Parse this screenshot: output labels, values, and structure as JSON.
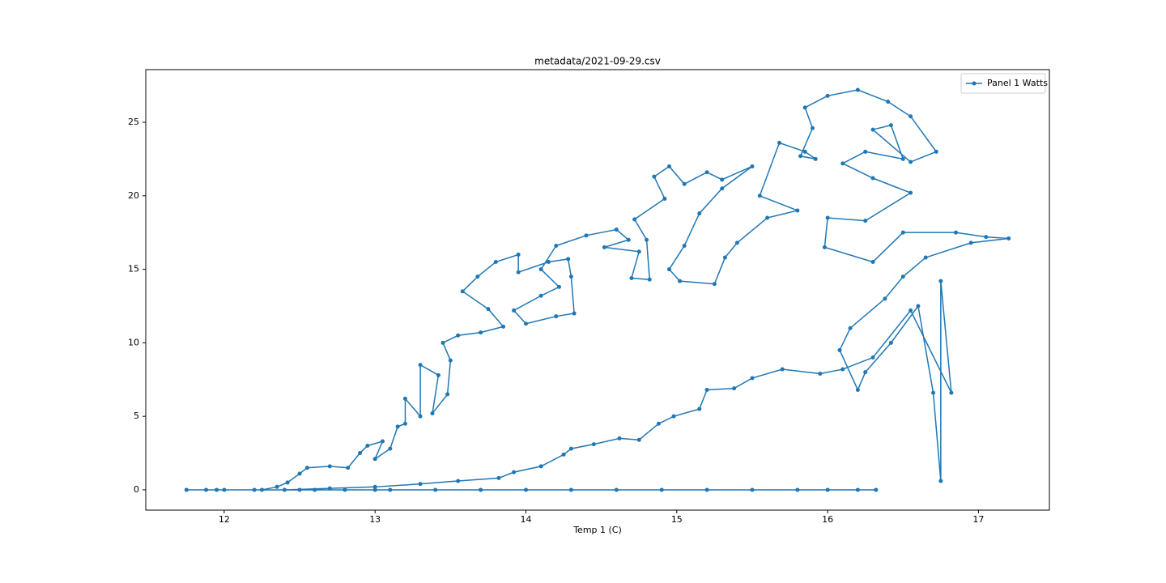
{
  "chart_data": {
    "type": "line",
    "title": "metadata/2021-09-29.csv",
    "xlabel": "Temp 1 (C)",
    "x": [
      16.32,
      16.2,
      16.0,
      15.8,
      15.5,
      15.2,
      14.9,
      14.6,
      14.3,
      14.0,
      13.7,
      13.4,
      13.1,
      12.8,
      12.5,
      12.2,
      12.0,
      11.88,
      11.75,
      11.95,
      12.25,
      12.35,
      12.42,
      12.5,
      12.55,
      12.7,
      12.82,
      12.9,
      12.95,
      13.05,
      13.0,
      13.1,
      13.15,
      13.2,
      13.2,
      13.3,
      13.3,
      13.42,
      13.38,
      13.48,
      13.5,
      13.45,
      13.55,
      13.7,
      13.85,
      13.75,
      13.58,
      13.68,
      13.8,
      13.95,
      13.95,
      14.15,
      14.28,
      14.3,
      14.32,
      14.2,
      14.0,
      13.92,
      14.1,
      14.22,
      14.1,
      14.2,
      14.4,
      14.6,
      14.68,
      14.52,
      14.75,
      14.7,
      14.82,
      14.8,
      14.72,
      14.92,
      14.85,
      14.95,
      15.05,
      15.2,
      15.3,
      15.5,
      15.3,
      15.15,
      15.05,
      14.95,
      15.02,
      15.25,
      15.32,
      15.4,
      15.6,
      15.8,
      15.55,
      15.68,
      15.85,
      15.92,
      15.82,
      15.9,
      15.85,
      16.0,
      16.2,
      16.4,
      16.55,
      16.72,
      16.55,
      16.3,
      16.42,
      16.5,
      16.25,
      16.1,
      16.3,
      16.55,
      16.25,
      16.0,
      15.98,
      16.3,
      16.5,
      16.85,
      17.05,
      17.2,
      16.95,
      16.65,
      16.5,
      16.38,
      16.15,
      16.08,
      16.2,
      16.25,
      16.42,
      16.6,
      16.7,
      16.75,
      16.75,
      16.82,
      16.55,
      16.3,
      16.1,
      15.95,
      15.7,
      15.5,
      15.38,
      15.2,
      15.15,
      14.98,
      14.88,
      14.75,
      14.62,
      14.45,
      14.3,
      14.25,
      14.1,
      13.92,
      13.82,
      13.55,
      13.3,
      13.0,
      12.7,
      12.4,
      12.6,
      13.0
    ],
    "series": [
      {
        "name": "Panel 1 Watts",
        "color": "#1f77b4",
        "values": [
          0,
          0,
          0,
          0,
          0,
          0,
          0,
          0,
          0,
          0,
          0,
          0,
          0,
          0,
          0,
          0,
          0,
          0,
          0,
          0,
          0,
          0.2,
          0.5,
          1.1,
          1.5,
          1.6,
          1.5,
          2.5,
          3,
          3.3,
          2.1,
          2.8,
          4.3,
          4.5,
          6.2,
          5,
          8.5,
          7.8,
          5.2,
          6.5,
          8.8,
          10,
          10.5,
          10.7,
          11.1,
          12.3,
          13.5,
          14.5,
          15.5,
          16,
          14.8,
          15.5,
          15.7,
          14.5,
          12,
          11.8,
          11.3,
          12.2,
          13.2,
          13.8,
          15,
          16.6,
          17.3,
          17.7,
          17,
          16.5,
          16.2,
          14.4,
          14.3,
          17,
          18.4,
          19.8,
          21.3,
          22,
          20.8,
          21.6,
          21.1,
          22,
          20.5,
          18.8,
          16.6,
          15,
          14.2,
          14,
          15.8,
          16.8,
          18.5,
          19,
          20,
          23.6,
          23,
          22.5,
          22.7,
          24.6,
          26,
          26.8,
          27.2,
          26.4,
          25.4,
          23,
          22.3,
          24.5,
          24.8,
          22.5,
          23,
          22.2,
          21.2,
          20.2,
          18.3,
          18.5,
          16.5,
          15.5,
          17.5,
          17.5,
          17.2,
          17.1,
          16.8,
          15.8,
          14.5,
          13,
          11,
          9.5,
          6.8,
          8,
          10,
          12.5,
          6.6,
          0.6,
          14.2,
          6.6,
          12.2,
          9,
          8.2,
          7.9,
          8.2,
          7.6,
          6.9,
          6.8,
          5.5,
          5,
          4.5,
          3.4,
          3.5,
          3.1,
          2.8,
          2.4,
          1.6,
          1.2,
          0.8,
          0.6,
          0.4,
          0.2,
          0.1,
          0,
          0,
          0
        ]
      }
    ],
    "xlim": [
      11.48,
      17.47
    ],
    "ylim": [
      -1.38,
      28.58
    ],
    "xticks": [
      12,
      13,
      14,
      15,
      16,
      17
    ],
    "yticks": [
      0,
      5,
      10,
      15,
      20,
      25
    ],
    "legend": "upper right",
    "grid": false
  }
}
